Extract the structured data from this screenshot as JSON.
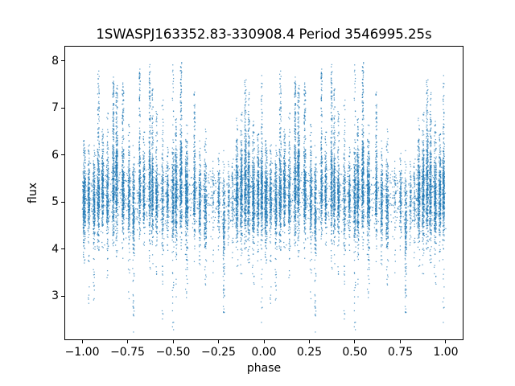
{
  "figure": {
    "title": "1SWASPJ163352.83-330908.4 Period 3546995.25s",
    "xlabel": "phase",
    "ylabel": "flux",
    "background_color": "#ffffff",
    "spine_color": "#000000",
    "text_color": "#000000"
  },
  "chart_data": {
    "type": "scatter",
    "title": "1SWASPJ163352.83-330908.4 Period 3546995.25s",
    "xlabel": "phase",
    "ylabel": "flux",
    "xlim": [
      -1.0975,
      1.0975
    ],
    "ylim": [
      2.06,
      8.32
    ],
    "grid": false,
    "legend": false,
    "xticks": {
      "values": [
        -1.0,
        -0.75,
        -0.5,
        -0.25,
        0.0,
        0.25,
        0.5,
        0.75,
        1.0
      ],
      "labels": [
        "−1.00",
        "−0.75",
        "−0.50",
        "−0.25",
        "0.00",
        "0.25",
        "0.50",
        "0.75",
        "1.00"
      ]
    },
    "yticks": {
      "values": [
        3,
        4,
        5,
        6,
        7,
        8
      ],
      "labels": [
        "3",
        "4",
        "5",
        "6",
        "7",
        "8"
      ]
    },
    "point_color": "#1f77b4",
    "point_alpha": 0.72,
    "marker_px": 1.25,
    "seed": 163352,
    "fold_note": "light curve folded on period; each cluster plotted at phase p and p-1",
    "duplicate_offset": -1,
    "background_band": {
      "count": 820,
      "flux_mean": 5.12,
      "flux_sigma": 0.34
    },
    "streak_fields": [
      "phase",
      "width",
      "n_core",
      "flux_center",
      "flux_sigma",
      "tail_hi_max",
      "n_tail_hi",
      "tail_lo_min",
      "n_tail_lo"
    ],
    "streaks": [
      [
        0.012,
        0.014,
        300,
        5.0,
        0.45,
        6.3,
        30,
        3.6,
        15
      ],
      [
        0.037,
        0.01,
        180,
        5.1,
        0.35,
        6.2,
        15,
        2.7,
        12
      ],
      [
        0.066,
        0.01,
        200,
        5.0,
        0.4,
        6.3,
        15,
        2.8,
        18
      ],
      [
        0.09,
        0.012,
        260,
        5.2,
        0.45,
        7.75,
        70,
        3.9,
        10
      ],
      [
        0.113,
        0.01,
        220,
        5.3,
        0.4,
        6.5,
        25,
        4.0,
        8
      ],
      [
        0.14,
        0.01,
        200,
        5.1,
        0.4,
        6.9,
        20,
        3.3,
        10
      ],
      [
        0.172,
        0.01,
        260,
        5.3,
        0.5,
        7.6,
        90,
        3.8,
        10
      ],
      [
        0.19,
        0.012,
        280,
        5.4,
        0.5,
        7.5,
        80,
        3.9,
        10
      ],
      [
        0.225,
        0.012,
        260,
        5.2,
        0.45,
        7.5,
        70,
        3.6,
        10
      ],
      [
        0.258,
        0.01,
        200,
        5.1,
        0.4,
        6.7,
        25,
        3.0,
        12
      ],
      [
        0.283,
        0.01,
        220,
        4.9,
        0.5,
        6.3,
        15,
        2.3,
        30
      ],
      [
        0.317,
        0.008,
        160,
        5.3,
        0.45,
        7.85,
        60,
        4.2,
        5
      ],
      [
        0.34,
        0.009,
        170,
        5.2,
        0.4,
        6.5,
        15,
        3.9,
        6
      ],
      [
        0.372,
        0.009,
        200,
        5.3,
        0.5,
        7.9,
        70,
        3.5,
        8
      ],
      [
        0.387,
        0.009,
        190,
        5.2,
        0.45,
        7.4,
        50,
        3.6,
        6
      ],
      [
        0.41,
        0.01,
        200,
        5.1,
        0.4,
        7.0,
        25,
        3.4,
        8
      ],
      [
        0.443,
        0.01,
        140,
        5.0,
        0.45,
        7.2,
        30,
        2.4,
        20
      ],
      [
        0.47,
        0.009,
        150,
        5.1,
        0.35,
        6.2,
        10,
        4.0,
        6
      ],
      [
        0.5,
        0.01,
        220,
        5.1,
        0.45,
        7.9,
        25,
        2.3,
        18
      ],
      [
        0.517,
        0.011,
        260,
        5.2,
        0.5,
        6.8,
        30,
        2.9,
        15
      ],
      [
        0.544,
        0.011,
        280,
        5.4,
        0.5,
        8.0,
        80,
        3.8,
        10
      ],
      [
        0.575,
        0.014,
        340,
        5.1,
        0.5,
        6.6,
        25,
        3.0,
        15
      ],
      [
        0.618,
        0.009,
        200,
        5.2,
        0.45,
        7.4,
        50,
        3.9,
        6
      ],
      [
        0.648,
        0.01,
        190,
        5.0,
        0.4,
        6.3,
        15,
        3.5,
        10
      ],
      [
        0.678,
        0.012,
        210,
        4.9,
        0.45,
        6.5,
        20,
        3.2,
        12
      ],
      [
        0.722,
        0.01,
        40,
        5.0,
        0.4,
        5.9,
        5,
        3.6,
        5
      ],
      [
        0.752,
        0.009,
        110,
        5.0,
        0.35,
        6.0,
        8,
        3.8,
        5
      ],
      [
        0.78,
        0.01,
        160,
        4.6,
        0.5,
        6.2,
        10,
        2.6,
        25
      ],
      [
        0.806,
        0.008,
        70,
        5.0,
        0.35,
        5.9,
        5,
        3.9,
        4
      ],
      [
        0.828,
        0.008,
        60,
        5.1,
        0.35,
        6.0,
        5,
        3.8,
        4
      ],
      [
        0.852,
        0.012,
        300,
        5.2,
        0.45,
        6.8,
        25,
        3.6,
        10
      ],
      [
        0.876,
        0.011,
        280,
        5.2,
        0.45,
        7.0,
        30,
        3.5,
        10
      ],
      [
        0.898,
        0.011,
        280,
        5.3,
        0.5,
        7.6,
        70,
        3.8,
        10
      ],
      [
        0.916,
        0.011,
        260,
        5.2,
        0.5,
        7.3,
        50,
        3.7,
        10
      ],
      [
        0.942,
        0.012,
        300,
        5.1,
        0.45,
        6.7,
        25,
        3.1,
        14
      ],
      [
        0.968,
        0.01,
        240,
        5.2,
        0.4,
        6.5,
        20,
        3.5,
        10
      ],
      [
        0.988,
        0.01,
        260,
        5.2,
        0.45,
        7.8,
        40,
        2.4,
        16
      ]
    ]
  }
}
